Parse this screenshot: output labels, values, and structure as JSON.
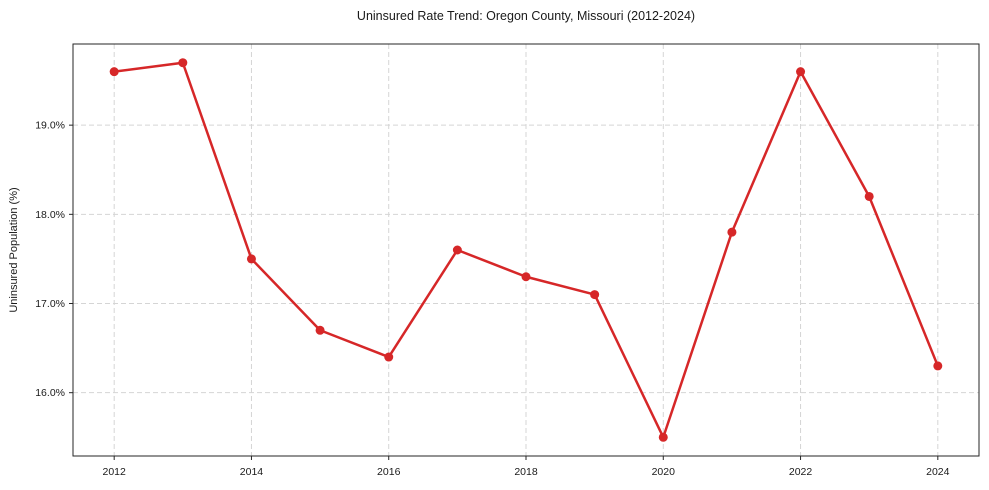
{
  "figure": {
    "title": "Uninsured Rate Trend: Oregon County, Missouri (2012-2024)",
    "ylabel": "Uninsured Population (%)"
  },
  "chart_data": {
    "type": "line",
    "title": "Uninsured Rate Trend: Oregon County, Missouri (2012-2024)",
    "xlabel": "",
    "ylabel": "Uninsured Population (%)",
    "x": [
      2012,
      2013,
      2014,
      2015,
      2016,
      2017,
      2018,
      2019,
      2020,
      2021,
      2022,
      2023,
      2024
    ],
    "values": [
      19.6,
      19.7,
      17.5,
      16.7,
      16.4,
      17.6,
      17.3,
      17.1,
      15.5,
      17.8,
      19.6,
      18.2,
      16.3
    ],
    "x_ticks": [
      2012,
      2014,
      2016,
      2018,
      2020,
      2022,
      2024
    ],
    "x_tick_labels": [
      "2012",
      "2014",
      "2016",
      "2018",
      "2020",
      "2022",
      "2024"
    ],
    "y_ticks": [
      16.0,
      17.0,
      18.0,
      19.0
    ],
    "y_tick_labels": [
      "16.0%",
      "17.0%",
      "18.0%",
      "19.0%"
    ],
    "xlim": [
      2011.4,
      2024.6
    ],
    "ylim": [
      15.29,
      19.91
    ],
    "grid": true,
    "grid_style": "dashed",
    "legend": false,
    "line_color": "#d62728",
    "marker": "o"
  }
}
